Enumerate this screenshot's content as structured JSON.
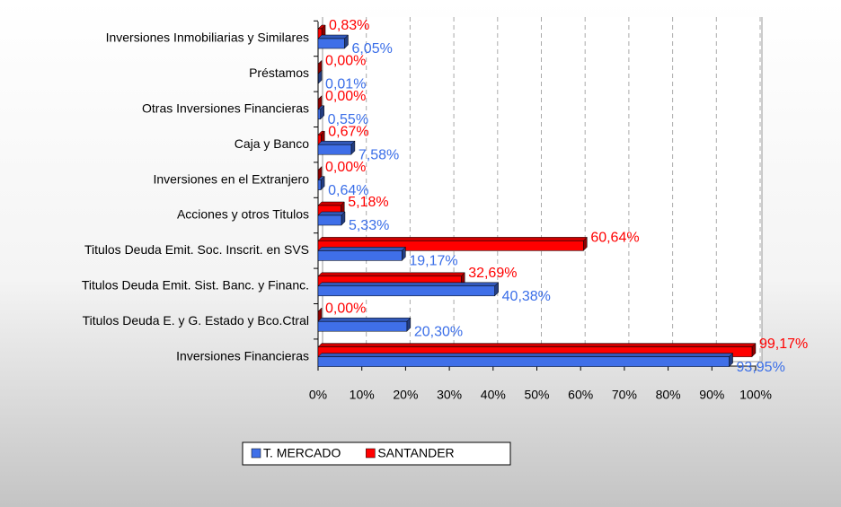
{
  "chart_data": {
    "type": "bar",
    "categories": [
      "Inversiones Inmobiliarias y Similares",
      "Préstamos",
      "Otras Inversiones Financieras",
      "Caja y Banco",
      "Inversiones en el Extranjero",
      "Acciones y otros Titulos",
      "Titulos Deuda Emit. Soc. Inscrit. en SVS",
      "Titulos Deuda Emit. Sist. Banc. y Financ.",
      "Titulos Deuda E. y G. Estado y Bco.Ctral",
      "Inversiones Financieras"
    ],
    "series": [
      {
        "name": "T. MERCADO",
        "color": "#3f6fe8",
        "label_color": "#3a6ee8",
        "values": [
          6.05,
          0.01,
          0.55,
          7.58,
          0.64,
          5.33,
          19.17,
          40.38,
          20.3,
          93.95
        ],
        "value_labels": [
          "6,05%",
          "0,01%",
          "0,55%",
          "7,58%",
          "0,64%",
          "5,33%",
          "19,17%",
          "40,38%",
          "20,30%",
          "93,95%"
        ]
      },
      {
        "name": "SANTANDER",
        "color": "#ff0000",
        "label_color": "#ff0000",
        "values": [
          0.83,
          0.0,
          0.0,
          0.67,
          0.0,
          5.18,
          60.64,
          32.69,
          0.0,
          99.17
        ],
        "value_labels": [
          "0,83%",
          "0,00%",
          "0,00%",
          "0,67%",
          "0,00%",
          "5,18%",
          "60,64%",
          "32,69%",
          "0,00%",
          "99,17%"
        ]
      }
    ],
    "xlim": [
      0,
      100
    ],
    "xticks": [
      {
        "value": 0,
        "label": "0%"
      },
      {
        "value": 10,
        "label": "10%"
      },
      {
        "value": 20,
        "label": "20%"
      },
      {
        "value": 30,
        "label": "30%"
      },
      {
        "value": 40,
        "label": "40%"
      },
      {
        "value": 50,
        "label": "50%"
      },
      {
        "value": 60,
        "label": "60%"
      },
      {
        "value": 70,
        "label": "70%"
      },
      {
        "value": 80,
        "label": "80%"
      },
      {
        "value": 90,
        "label": "90%"
      },
      {
        "value": 100,
        "label": "100%"
      }
    ],
    "grid": true,
    "legend": "bottom"
  }
}
